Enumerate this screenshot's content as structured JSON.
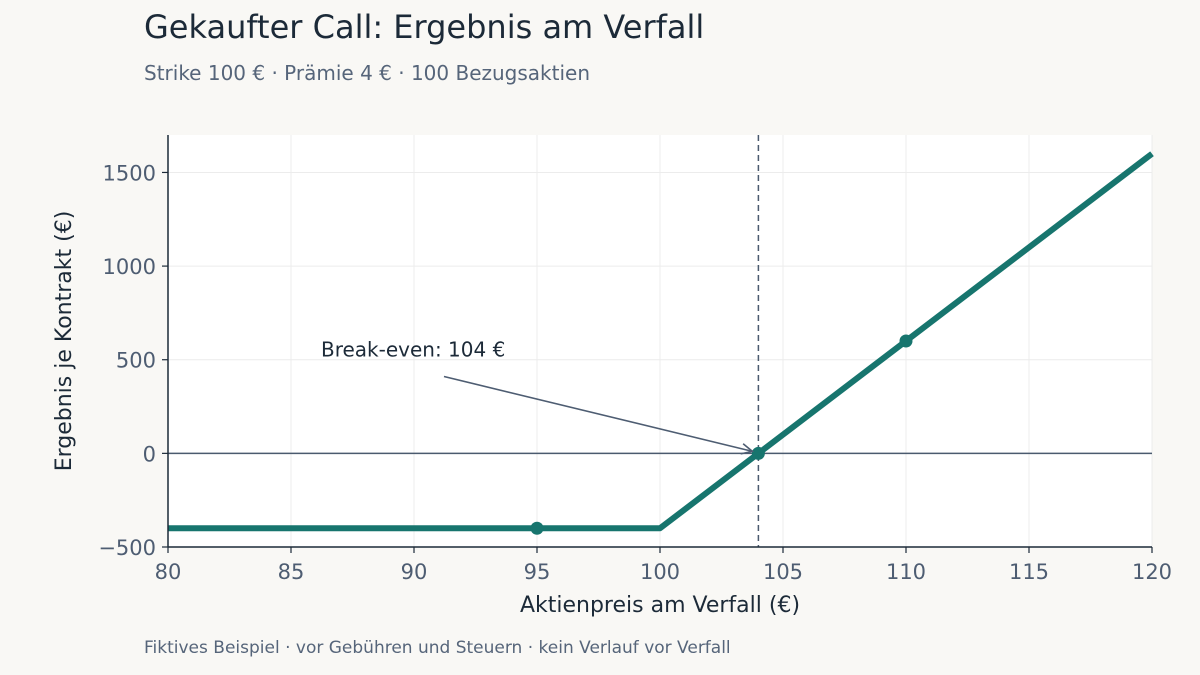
{
  "header": {
    "title": "Gekaufter Call: Ergebnis am Verfall",
    "subtitle": "Strike 100 € · Prämie 4 € · 100 Bezugsaktien"
  },
  "footer": {
    "note": "Fiktives Beispiel · vor Gebühren und Steuern · kein Verlauf vor Verfall"
  },
  "chart_data": {
    "type": "line",
    "title": "Gekaufter Call: Ergebnis am Verfall",
    "subtitle": "Strike 100 € · Prämie 4 € · 100 Bezugsaktien",
    "xlabel": "Aktienpreis am Verfall (€)",
    "ylabel": "Ergebnis je Kontrakt (€)",
    "xlim": [
      80,
      120
    ],
    "ylim": [
      -500,
      1700
    ],
    "x_ticks": [
      80,
      85,
      90,
      95,
      100,
      105,
      110,
      115,
      120
    ],
    "y_ticks": [
      -500,
      0,
      500,
      1000,
      1500
    ],
    "grid": true,
    "series": [
      {
        "x": [
          80,
          100,
          120
        ],
        "y": [
          -400,
          -400,
          1600
        ],
        "color": "#17756e"
      }
    ],
    "markers": [
      {
        "x": 95,
        "y": -400
      },
      {
        "x": 104,
        "y": 0
      },
      {
        "x": 110,
        "y": 600
      }
    ],
    "reference_lines": {
      "horizontal": 0,
      "vertical": 104
    },
    "annotation": {
      "text": "Break-even: 104 €",
      "x": 104,
      "y": 0,
      "text_x": 91.3,
      "text_y": 560
    }
  }
}
